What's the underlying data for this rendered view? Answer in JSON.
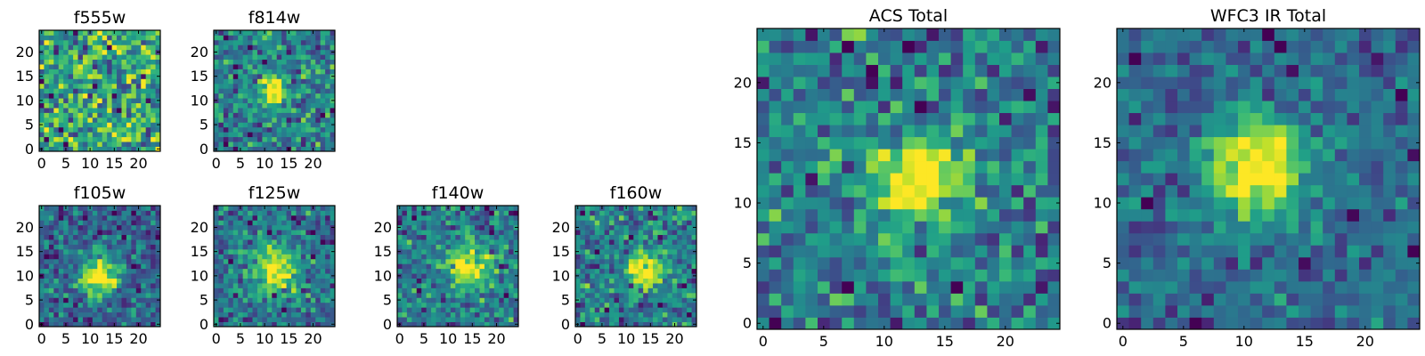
{
  "chart_data": [
    {
      "type": "heatmap",
      "title": "f555w",
      "grid_size": [
        25,
        25
      ],
      "xlim": [
        0,
        24
      ],
      "ylim": [
        0,
        24
      ],
      "xticks": [
        0,
        5,
        10,
        15,
        20
      ],
      "yticks": [
        0,
        5,
        10,
        15,
        20
      ],
      "colormap": "viridis",
      "description": "noisy field, no distinct source",
      "blobs": [],
      "noise_level": 0.9,
      "seed": 11
    },
    {
      "type": "heatmap",
      "title": "f814w",
      "grid_size": [
        25,
        25
      ],
      "xlim": [
        0,
        24
      ],
      "ylim": [
        0,
        24
      ],
      "xticks": [
        0,
        5,
        10,
        15,
        20
      ],
      "yticks": [
        0,
        5,
        10,
        15,
        20
      ],
      "colormap": "viridis",
      "blobs": [
        {
          "x": 12,
          "y": 12,
          "sigma": 2.0,
          "amp": 0.9
        }
      ],
      "noise_level": 0.8,
      "seed": 23
    },
    {
      "type": "heatmap",
      "title": "f105w",
      "grid_size": [
        25,
        25
      ],
      "xlim": [
        0,
        24
      ],
      "ylim": [
        0,
        24
      ],
      "xticks": [
        0,
        5,
        10,
        15,
        20
      ],
      "yticks": [
        0,
        5,
        10,
        15,
        20
      ],
      "colormap": "viridis",
      "blobs": [
        {
          "x": 12,
          "y": 10,
          "sigma": 3.0,
          "amp": 0.8
        }
      ],
      "noise_level": 0.7,
      "seed": 37
    },
    {
      "type": "heatmap",
      "title": "f125w",
      "grid_size": [
        25,
        25
      ],
      "xlim": [
        0,
        24
      ],
      "ylim": [
        0,
        24
      ],
      "xticks": [
        0,
        5,
        10,
        15,
        20
      ],
      "yticks": [
        0,
        5,
        10,
        15,
        20
      ],
      "colormap": "viridis",
      "blobs": [
        {
          "x": 12,
          "y": 11,
          "sigma": 3.5,
          "amp": 0.7
        }
      ],
      "noise_level": 0.7,
      "seed": 41
    },
    {
      "type": "heatmap",
      "title": "f140w",
      "grid_size": [
        25,
        25
      ],
      "xlim": [
        0,
        24
      ],
      "ylim": [
        0,
        24
      ],
      "xticks": [
        0,
        5,
        10,
        15,
        20
      ],
      "yticks": [
        0,
        5,
        10,
        15,
        20
      ],
      "colormap": "viridis",
      "blobs": [
        {
          "x": 14,
          "y": 12,
          "sigma": 3.0,
          "amp": 0.6
        }
      ],
      "noise_level": 0.7,
      "seed": 53
    },
    {
      "type": "heatmap",
      "title": "f160w",
      "grid_size": [
        25,
        25
      ],
      "xlim": [
        0,
        24
      ],
      "ylim": [
        0,
        24
      ],
      "xticks": [
        0,
        5,
        10,
        15,
        20
      ],
      "yticks": [
        0,
        5,
        10,
        15,
        20
      ],
      "colormap": "viridis",
      "blobs": [
        {
          "x": 14,
          "y": 11,
          "sigma": 2.5,
          "amp": 0.7
        }
      ],
      "noise_level": 0.65,
      "seed": 67
    },
    {
      "type": "heatmap",
      "title": "ACS Total",
      "grid_size": [
        25,
        25
      ],
      "xlim": [
        0,
        24
      ],
      "ylim": [
        0,
        24
      ],
      "xticks": [
        0,
        5,
        10,
        15,
        20
      ],
      "yticks": [
        0,
        5,
        10,
        15,
        20
      ],
      "colormap": "viridis",
      "blobs": [
        {
          "x": 13,
          "y": 12,
          "sigma": 2.2,
          "amp": 0.8
        }
      ],
      "noise_level": 0.7,
      "seed": 79
    },
    {
      "type": "heatmap",
      "title": "WFC3 IR Total",
      "grid_size": [
        25,
        25
      ],
      "xlim": [
        0,
        24
      ],
      "ylim": [
        0,
        24
      ],
      "xticks": [
        0,
        5,
        10,
        15,
        20
      ],
      "yticks": [
        0,
        5,
        10,
        15,
        20
      ],
      "colormap": "viridis",
      "blobs": [
        {
          "x": 11,
          "y": 13,
          "sigma": 3.0,
          "amp": 0.85
        }
      ],
      "noise_level": 0.55,
      "seed": 97
    }
  ]
}
